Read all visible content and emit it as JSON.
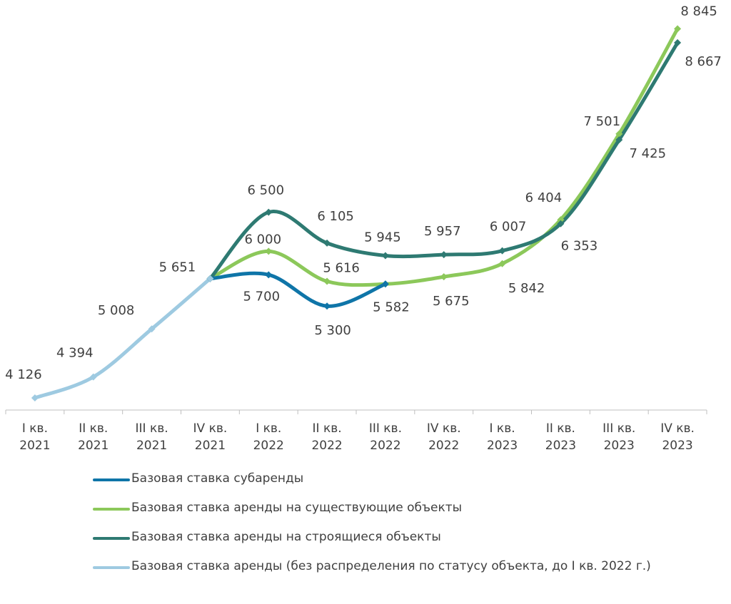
{
  "chart_data": {
    "type": "line",
    "categories": [
      [
        "I кв.",
        "2021"
      ],
      [
        "II кв.",
        "2021"
      ],
      [
        "III кв.",
        "2021"
      ],
      [
        "IV кв.",
        "2021"
      ],
      [
        "I кв.",
        "2022"
      ],
      [
        "II кв.",
        "2022"
      ],
      [
        "III кв.",
        "2022"
      ],
      [
        "IV кв.",
        "2022"
      ],
      [
        "I кв.",
        "2023"
      ],
      [
        "II кв.",
        "2023"
      ],
      [
        "III кв.",
        "2023"
      ],
      [
        "IV кв.",
        "2023"
      ]
    ],
    "ylim": [
      3500,
      9000
    ],
    "grid": false,
    "legend_position": "bottom",
    "series": [
      {
        "name": "Базовая ставка субаренды",
        "color": "#0f75a8",
        "values": [
          null,
          null,
          null,
          5651,
          5700,
          5300,
          5582,
          null,
          null,
          null,
          null,
          null
        ],
        "labels": [
          null,
          null,
          null,
          null,
          "5 700",
          "5 300",
          null,
          null,
          null,
          null,
          null,
          null
        ]
      },
      {
        "name": "Базовая ставка аренды на существующие объекты",
        "color": "#8cc85a",
        "values": [
          null,
          null,
          null,
          5651,
          6000,
          5616,
          5582,
          5675,
          5842,
          6404,
          7501,
          8845
        ],
        "labels": [
          null,
          null,
          null,
          null,
          "6 000",
          "5 616",
          "5 582",
          "5 675",
          "5 842",
          "6 404",
          "7 501",
          "8 845"
        ]
      },
      {
        "name": "Базовая ставка аренды на строящиеся объекты",
        "color": "#2e7a72",
        "values": [
          null,
          null,
          null,
          5651,
          6500,
          6105,
          5945,
          5957,
          6007,
          6353,
          7425,
          8667
        ],
        "labels": [
          null,
          null,
          null,
          null,
          "6 500",
          "6 105",
          "5 945",
          "5 957",
          "6 007",
          "6 353",
          "7 425",
          "8 667"
        ]
      },
      {
        "name": "Базовая ставка аренды (без распределения по статусу объекта, до I кв. 2022 г.)",
        "color": "#9ecae1",
        "values": [
          4126,
          4394,
          5008,
          5651,
          null,
          null,
          null,
          null,
          null,
          null,
          null,
          null
        ],
        "labels": [
          "4 126",
          "4 394",
          "5 008",
          "5 651",
          null,
          null,
          null,
          null,
          null,
          null,
          null,
          null
        ]
      }
    ]
  },
  "legend": [
    {
      "label": "Базовая ставка субаренды",
      "color": "#0f75a8"
    },
    {
      "label": "Базовая ставка аренды на существующие объекты",
      "color": "#8cc85a"
    },
    {
      "label": "Базовая ставка аренды на строящиеся объекты",
      "color": "#2e7a72"
    },
    {
      "label": "Базовая ставка аренды (без распределения по статусу объекта, до I кв. 2022 г.)",
      "color": "#9ecae1"
    }
  ]
}
